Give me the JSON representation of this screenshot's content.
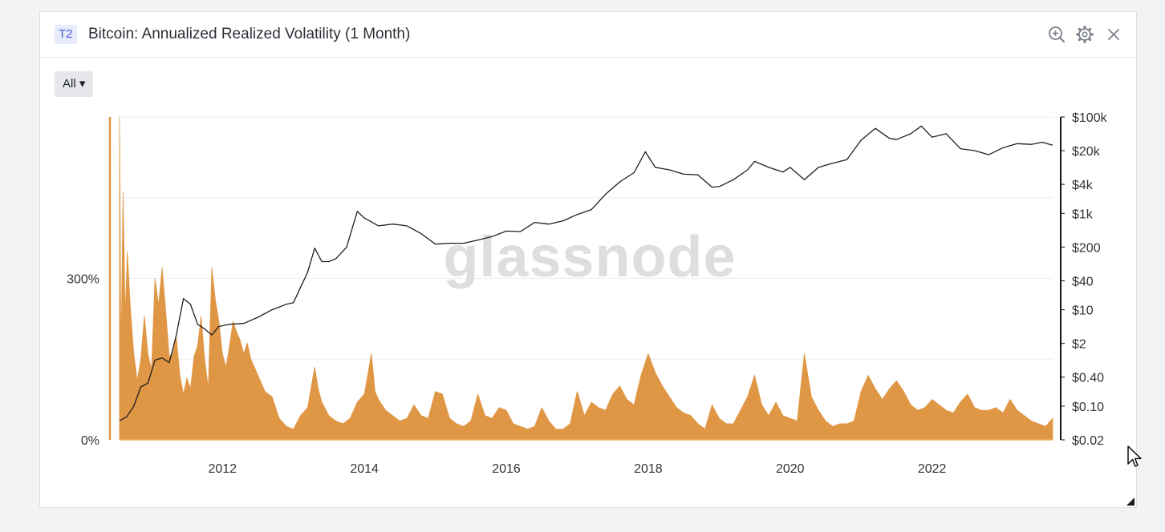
{
  "header": {
    "tier_badge": "T2",
    "title": "Bitcoin: Annualized Realized Volatility (1 Month)",
    "icons": [
      "zoom-in-icon",
      "gear-icon",
      "close-icon"
    ]
  },
  "controls": {
    "range_label": "All ▾"
  },
  "watermark": "glassnode",
  "colors": {
    "volatility_fill": "#e09745",
    "price_line": "#1f1f1f",
    "grid": "#eceef1",
    "axis_text": "#333333"
  },
  "chart_data": {
    "type": "area",
    "title": "Bitcoin: Annualized Realized Volatility (1 Month)",
    "x_axis": {
      "type": "date",
      "range": [
        2010.55,
        2023.7
      ],
      "ticks": [
        "2012",
        "2014",
        "2016",
        "2018",
        "2020",
        "2022"
      ]
    },
    "y_left": {
      "range": [
        0,
        600
      ],
      "ticks": [
        {
          "value": 0,
          "label": "0%"
        },
        {
          "value": 300,
          "label": "300%"
        }
      ]
    },
    "y_right": {
      "scale": "log",
      "range": [
        0.02,
        100000
      ],
      "ticks": [
        {
          "value": 100000,
          "label": "$100k"
        },
        {
          "value": 20000,
          "label": "$20k"
        },
        {
          "value": 4000,
          "label": "$4k"
        },
        {
          "value": 1000,
          "label": "$1k"
        },
        {
          "value": 200,
          "label": "$200"
        },
        {
          "value": 40,
          "label": "$40"
        },
        {
          "value": 10,
          "label": "$10"
        },
        {
          "value": 2,
          "label": "$2"
        },
        {
          "value": 0.4,
          "label": "$0.40"
        },
        {
          "value": 0.1,
          "label": "$0.10"
        },
        {
          "value": 0.02,
          "label": "$0.02"
        }
      ]
    },
    "grid": true,
    "series": [
      {
        "kind": "volatility",
        "axis": "left",
        "style": "area",
        "points": [
          [
            2010.55,
            600
          ],
          [
            2010.57,
            150
          ],
          [
            2010.6,
            460
          ],
          [
            2010.63,
            230
          ],
          [
            2010.66,
            350
          ],
          [
            2010.7,
            250
          ],
          [
            2010.75,
            160
          ],
          [
            2010.8,
            110
          ],
          [
            2010.85,
            150
          ],
          [
            2010.9,
            230
          ],
          [
            2010.95,
            160
          ],
          [
            2011.0,
            130
          ],
          [
            2011.05,
            300
          ],
          [
            2011.1,
            250
          ],
          [
            2011.15,
            320
          ],
          [
            2011.2,
            240
          ],
          [
            2011.25,
            155
          ],
          [
            2011.3,
            160
          ],
          [
            2011.35,
            190
          ],
          [
            2011.4,
            120
          ],
          [
            2011.45,
            85
          ],
          [
            2011.5,
            115
          ],
          [
            2011.55,
            95
          ],
          [
            2011.6,
            155
          ],
          [
            2011.65,
            175
          ],
          [
            2011.7,
            230
          ],
          [
            2011.75,
            150
          ],
          [
            2011.8,
            95
          ],
          [
            2011.85,
            320
          ],
          [
            2011.9,
            260
          ],
          [
            2011.95,
            220
          ],
          [
            2012.0,
            160
          ],
          [
            2012.05,
            135
          ],
          [
            2012.1,
            175
          ],
          [
            2012.15,
            220
          ],
          [
            2012.2,
            200
          ],
          [
            2012.25,
            185
          ],
          [
            2012.3,
            160
          ],
          [
            2012.35,
            180
          ],
          [
            2012.4,
            150
          ],
          [
            2012.5,
            120
          ],
          [
            2012.6,
            90
          ],
          [
            2012.7,
            80
          ],
          [
            2012.8,
            40
          ],
          [
            2012.9,
            25
          ],
          [
            2013.0,
            20
          ],
          [
            2013.1,
            45
          ],
          [
            2013.2,
            60
          ],
          [
            2013.3,
            135
          ],
          [
            2013.35,
            95
          ],
          [
            2013.4,
            70
          ],
          [
            2013.5,
            45
          ],
          [
            2013.6,
            35
          ],
          [
            2013.7,
            30
          ],
          [
            2013.8,
            40
          ],
          [
            2013.9,
            70
          ],
          [
            2014.0,
            85
          ],
          [
            2014.1,
            160
          ],
          [
            2014.15,
            90
          ],
          [
            2014.2,
            75
          ],
          [
            2014.3,
            55
          ],
          [
            2014.4,
            45
          ],
          [
            2014.5,
            35
          ],
          [
            2014.6,
            40
          ],
          [
            2014.7,
            65
          ],
          [
            2014.8,
            45
          ],
          [
            2014.9,
            40
          ],
          [
            2015.0,
            90
          ],
          [
            2015.1,
            85
          ],
          [
            2015.2,
            40
          ],
          [
            2015.3,
            30
          ],
          [
            2015.4,
            25
          ],
          [
            2015.5,
            35
          ],
          [
            2015.6,
            85
          ],
          [
            2015.7,
            45
          ],
          [
            2015.8,
            40
          ],
          [
            2015.9,
            60
          ],
          [
            2016.0,
            55
          ],
          [
            2016.1,
            30
          ],
          [
            2016.2,
            25
          ],
          [
            2016.3,
            20
          ],
          [
            2016.4,
            25
          ],
          [
            2016.5,
            60
          ],
          [
            2016.6,
            35
          ],
          [
            2016.7,
            20
          ],
          [
            2016.8,
            20
          ],
          [
            2016.9,
            30
          ],
          [
            2017.0,
            90
          ],
          [
            2017.1,
            45
          ],
          [
            2017.2,
            70
          ],
          [
            2017.3,
            60
          ],
          [
            2017.4,
            55
          ],
          [
            2017.5,
            85
          ],
          [
            2017.6,
            100
          ],
          [
            2017.7,
            75
          ],
          [
            2017.8,
            65
          ],
          [
            2017.9,
            120
          ],
          [
            2018.0,
            160
          ],
          [
            2018.1,
            125
          ],
          [
            2018.2,
            100
          ],
          [
            2018.3,
            80
          ],
          [
            2018.4,
            60
          ],
          [
            2018.5,
            50
          ],
          [
            2018.6,
            45
          ],
          [
            2018.7,
            30
          ],
          [
            2018.8,
            20
          ],
          [
            2018.9,
            65
          ],
          [
            2019.0,
            40
          ],
          [
            2019.1,
            30
          ],
          [
            2019.2,
            30
          ],
          [
            2019.3,
            55
          ],
          [
            2019.4,
            80
          ],
          [
            2019.5,
            120
          ],
          [
            2019.6,
            65
          ],
          [
            2019.7,
            45
          ],
          [
            2019.8,
            70
          ],
          [
            2019.9,
            45
          ],
          [
            2020.0,
            40
          ],
          [
            2020.1,
            35
          ],
          [
            2020.2,
            160
          ],
          [
            2020.3,
            80
          ],
          [
            2020.4,
            55
          ],
          [
            2020.5,
            35
          ],
          [
            2020.6,
            25
          ],
          [
            2020.7,
            30
          ],
          [
            2020.8,
            30
          ],
          [
            2020.9,
            35
          ],
          [
            2021.0,
            90
          ],
          [
            2021.1,
            120
          ],
          [
            2021.2,
            95
          ],
          [
            2021.3,
            75
          ],
          [
            2021.4,
            95
          ],
          [
            2021.5,
            110
          ],
          [
            2021.6,
            90
          ],
          [
            2021.7,
            65
          ],
          [
            2021.8,
            55
          ],
          [
            2021.9,
            60
          ],
          [
            2022.0,
            75
          ],
          [
            2022.1,
            65
          ],
          [
            2022.2,
            55
          ],
          [
            2022.3,
            50
          ],
          [
            2022.4,
            70
          ],
          [
            2022.5,
            85
          ],
          [
            2022.6,
            60
          ],
          [
            2022.7,
            55
          ],
          [
            2022.8,
            55
          ],
          [
            2022.9,
            60
          ],
          [
            2023.0,
            50
          ],
          [
            2023.1,
            75
          ],
          [
            2023.2,
            55
          ],
          [
            2023.3,
            45
          ],
          [
            2023.4,
            35
          ],
          [
            2023.5,
            30
          ],
          [
            2023.6,
            25
          ],
          [
            2023.7,
            40
          ]
        ]
      },
      {
        "kind": "price",
        "axis": "right",
        "style": "line",
        "points": [
          [
            2010.55,
            0.05
          ],
          [
            2010.65,
            0.06
          ],
          [
            2010.75,
            0.1
          ],
          [
            2010.85,
            0.25
          ],
          [
            2010.95,
            0.3
          ],
          [
            2011.05,
            0.9
          ],
          [
            2011.15,
            1.0
          ],
          [
            2011.25,
            0.8
          ],
          [
            2011.35,
            3.0
          ],
          [
            2011.45,
            17
          ],
          [
            2011.55,
            13
          ],
          [
            2011.65,
            5.0
          ],
          [
            2011.75,
            4.0
          ],
          [
            2011.85,
            3.0
          ],
          [
            2011.95,
            4.5
          ],
          [
            2012.1,
            5.0
          ],
          [
            2012.3,
            5.2
          ],
          [
            2012.5,
            7.0
          ],
          [
            2012.7,
            10
          ],
          [
            2012.9,
            13
          ],
          [
            2013.0,
            14
          ],
          [
            2013.2,
            60
          ],
          [
            2013.3,
            190
          ],
          [
            2013.4,
            100
          ],
          [
            2013.5,
            100
          ],
          [
            2013.6,
            115
          ],
          [
            2013.75,
            200
          ],
          [
            2013.9,
            1100
          ],
          [
            2014.0,
            800
          ],
          [
            2014.2,
            550
          ],
          [
            2014.4,
            600
          ],
          [
            2014.6,
            550
          ],
          [
            2014.8,
            380
          ],
          [
            2015.0,
            230
          ],
          [
            2015.2,
            240
          ],
          [
            2015.4,
            240
          ],
          [
            2015.6,
            280
          ],
          [
            2015.8,
            330
          ],
          [
            2016.0,
            430
          ],
          [
            2016.2,
            420
          ],
          [
            2016.4,
            650
          ],
          [
            2016.6,
            600
          ],
          [
            2016.8,
            700
          ],
          [
            2017.0,
            950
          ],
          [
            2017.2,
            1200
          ],
          [
            2017.4,
            2500
          ],
          [
            2017.6,
            4500
          ],
          [
            2017.8,
            7000
          ],
          [
            2017.96,
            19000
          ],
          [
            2018.1,
            9000
          ],
          [
            2018.3,
            8000
          ],
          [
            2018.5,
            6500
          ],
          [
            2018.7,
            6300
          ],
          [
            2018.9,
            3500
          ],
          [
            2019.0,
            3600
          ],
          [
            2019.2,
            5000
          ],
          [
            2019.4,
            8000
          ],
          [
            2019.5,
            12000
          ],
          [
            2019.7,
            9000
          ],
          [
            2019.9,
            7200
          ],
          [
            2020.0,
            9000
          ],
          [
            2020.2,
            5000
          ],
          [
            2020.4,
            9000
          ],
          [
            2020.6,
            11000
          ],
          [
            2020.8,
            13000
          ],
          [
            2021.0,
            33000
          ],
          [
            2021.2,
            58000
          ],
          [
            2021.4,
            36000
          ],
          [
            2021.5,
            34000
          ],
          [
            2021.7,
            45000
          ],
          [
            2021.85,
            65000
          ],
          [
            2022.0,
            38000
          ],
          [
            2022.2,
            45000
          ],
          [
            2022.4,
            22000
          ],
          [
            2022.6,
            20000
          ],
          [
            2022.8,
            16500
          ],
          [
            2023.0,
            23000
          ],
          [
            2023.2,
            28000
          ],
          [
            2023.4,
            27000
          ],
          [
            2023.55,
            30000
          ],
          [
            2023.7,
            26000
          ]
        ]
      }
    ]
  }
}
